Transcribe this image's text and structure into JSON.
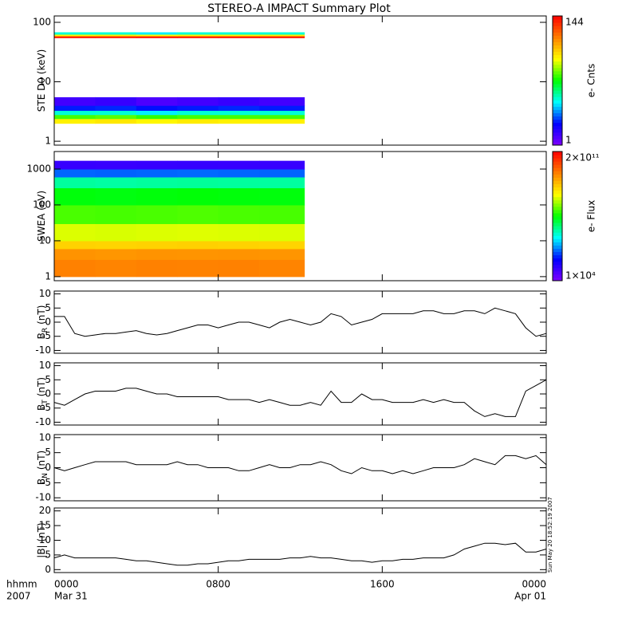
{
  "title": "STEREO-A IMPACT Summary Plot",
  "timestamp": "Sun May 20 18:52:19 2007",
  "xaxis": {
    "label": "hhmm",
    "year": "2007",
    "xlim": [
      0,
      24
    ],
    "xticks": [
      {
        "value": 0,
        "label": "0000"
      },
      {
        "value": 8,
        "label": "0800"
      },
      {
        "value": 16,
        "label": "1600"
      },
      {
        "value": 24,
        "label": "0000"
      }
    ],
    "dates": [
      {
        "value": 0,
        "label": "Mar 31"
      },
      {
        "value": 24,
        "label": "Apr 01"
      }
    ]
  },
  "colormap": [
    "#8000ff",
    "#0000ff",
    "#00ffff",
    "#00ff00",
    "#ffff00",
    "#ff8000",
    "#ff0000"
  ],
  "chart_data": [
    {
      "type": "heatmap",
      "ylabel": {
        "base": "STE D0 (keV)"
      },
      "ylog": true,
      "ylim": [
        0.86,
        128
      ],
      "yticks": [
        1,
        10,
        100
      ],
      "x": [
        0,
        2,
        4,
        6,
        8,
        10,
        12.2
      ],
      "y": [
        2,
        2.4,
        2.8,
        3.3,
        4,
        5.5,
        55,
        59,
        63,
        68
      ],
      "z": [
        [
          30,
          32,
          29,
          31,
          30,
          30
        ],
        [
          15,
          16,
          14,
          15,
          15,
          15
        ],
        [
          6,
          6,
          5,
          6,
          6,
          6
        ],
        [
          2.5,
          2.6,
          2.4,
          2.5,
          2.6,
          2.5
        ],
        [
          1.5,
          1.6,
          1.4,
          1.5,
          1.6,
          1.5
        ],
        [
          null,
          null,
          null,
          null,
          null,
          null
        ],
        [
          120,
          118,
          122,
          119,
          121,
          120
        ],
        [
          30,
          31,
          29,
          30,
          30,
          31
        ],
        [
          6,
          6,
          5,
          6,
          6,
          6
        ]
      ],
      "colorbar": {
        "label": "e- Cnts",
        "zlog": true,
        "zlim": [
          1,
          144
        ],
        "zticks": [
          1,
          144
        ]
      }
    },
    {
      "type": "heatmap",
      "ylabel": {
        "base": "SWEA (eV)"
      },
      "ylog": true,
      "ylim": [
        0.77,
        3085
      ],
      "yticks": [
        1,
        10,
        100,
        1000
      ],
      "x": [
        0,
        2,
        4,
        6,
        8,
        10,
        12.2
      ],
      "y": [
        1,
        3,
        6,
        10,
        30,
        100,
        300,
        600,
        1000,
        1700
      ],
      "z": [
        [
          12000000000,
          11000000000,
          12000000000,
          11500000000,
          12000000000,
          11000000000
        ],
        [
          8000000000,
          7500000000,
          8000000000,
          7800000000,
          8000000000,
          7600000000
        ],
        [
          2000000000,
          1900000000,
          2000000000,
          2100000000,
          2000000000,
          1900000000
        ],
        [
          500000000,
          480000000,
          500000000,
          520000000,
          500000000,
          490000000
        ],
        [
          100000000,
          95000000,
          100000000,
          105000000,
          100000000,
          98000000
        ],
        [
          40000000,
          38000000,
          40000000,
          42000000,
          40000000,
          39000000
        ],
        [
          8000000,
          7500000,
          8000000,
          8200000,
          8000000,
          7800000
        ],
        [
          500000,
          480000,
          500000,
          520000,
          500000,
          490000
        ],
        [
          50000,
          48000,
          50000,
          52000,
          50000,
          49000
        ]
      ],
      "colorbar": {
        "label": "e- Flux",
        "zlog": true,
        "zlim": [
          10000,
          200000000000
        ],
        "zticks": [
          {
            "value": 10000,
            "label": "1×10⁴"
          },
          {
            "value": 200000000000,
            "label": "2×10¹¹"
          }
        ]
      }
    },
    {
      "type": "line",
      "ylabel": {
        "base": "B",
        "sub": "R",
        "unit": "(nT)"
      },
      "ylim": [
        -11,
        11
      ],
      "yticks": [
        10,
        5,
        0,
        -5,
        -10
      ],
      "color": "#000000",
      "x": [
        0,
        0.5,
        1,
        1.5,
        2,
        2.5,
        3,
        3.5,
        4,
        4.5,
        5,
        5.5,
        6,
        6.5,
        7,
        7.5,
        8,
        8.5,
        9,
        9.5,
        10,
        10.5,
        11,
        11.5,
        12,
        12.5,
        13,
        13.5,
        14,
        14.5,
        15,
        15.5,
        16,
        16.5,
        17,
        17.5,
        18,
        18.5,
        19,
        19.5,
        20,
        20.5,
        21,
        21.5,
        22,
        22.5,
        23,
        23.5,
        24
      ],
      "values": [
        2,
        2,
        -4,
        -5,
        -4.5,
        -4,
        -4,
        -3.5,
        -3,
        -4,
        -4.5,
        -4,
        -3,
        -2,
        -1,
        -1,
        -2,
        -1,
        0,
        0,
        -1,
        -2,
        0,
        1,
        0,
        -1,
        0,
        3,
        2,
        -1,
        0,
        1,
        3,
        3,
        3,
        3,
        4,
        4,
        3,
        3,
        4,
        4,
        3,
        5,
        4,
        3,
        -2,
        -5,
        -4
      ]
    },
    {
      "type": "line",
      "ylabel": {
        "base": "B",
        "sub": "T",
        "unit": "(nT)"
      },
      "ylim": [
        -11,
        11
      ],
      "yticks": [
        10,
        5,
        0,
        -5,
        -10
      ],
      "color": "#000000",
      "x": [
        0,
        0.5,
        1,
        1.5,
        2,
        2.5,
        3,
        3.5,
        4,
        4.5,
        5,
        5.5,
        6,
        6.5,
        7,
        7.5,
        8,
        8.5,
        9,
        9.5,
        10,
        10.5,
        11,
        11.5,
        12,
        12.5,
        13,
        13.5,
        14,
        14.5,
        15,
        15.5,
        16,
        16.5,
        17,
        17.5,
        18,
        18.5,
        19,
        19.5,
        20,
        20.5,
        21,
        21.5,
        22,
        22.5,
        23,
        23.5,
        24
      ],
      "values": [
        -3,
        -4,
        -2,
        0,
        1,
        1,
        1,
        2,
        2,
        1,
        0,
        0,
        -1,
        -1,
        -1,
        -1,
        -1,
        -2,
        -2,
        -2,
        -3,
        -2,
        -3,
        -4,
        -4,
        -3,
        -4,
        1,
        -3,
        -3,
        0,
        -2,
        -2,
        -3,
        -3,
        -3,
        -2,
        -3,
        -2,
        -3,
        -3,
        -6,
        -8,
        -7,
        -8,
        -8,
        1,
        3,
        5
      ]
    },
    {
      "type": "line",
      "ylabel": {
        "base": "B",
        "sub": "N",
        "unit": "(nT)"
      },
      "ylim": [
        -11,
        11
      ],
      "yticks": [
        10,
        5,
        0,
        -5,
        -10
      ],
      "color": "#000000",
      "x": [
        0,
        0.5,
        1,
        1.5,
        2,
        2.5,
        3,
        3.5,
        4,
        4.5,
        5,
        5.5,
        6,
        6.5,
        7,
        7.5,
        8,
        8.5,
        9,
        9.5,
        10,
        10.5,
        11,
        11.5,
        12,
        12.5,
        13,
        13.5,
        14,
        14.5,
        15,
        15.5,
        16,
        16.5,
        17,
        17.5,
        18,
        18.5,
        19,
        19.5,
        20,
        20.5,
        21,
        21.5,
        22,
        22.5,
        23,
        23.5,
        24
      ],
      "values": [
        0,
        -1,
        0,
        1,
        2,
        2,
        2,
        2,
        1,
        1,
        1,
        1,
        2,
        1,
        1,
        0,
        0,
        0,
        -1,
        -1,
        0,
        1,
        0,
        0,
        1,
        1,
        2,
        1,
        -1,
        -2,
        0,
        -1,
        -1,
        -2,
        -1,
        -2,
        -1,
        0,
        0,
        0,
        1,
        3,
        2,
        1,
        4,
        4,
        3,
        4,
        1
      ]
    },
    {
      "type": "line",
      "ylabel": {
        "base": "|B| (nT)"
      },
      "ylim": [
        -1,
        21
      ],
      "yticks": [
        20,
        15,
        10,
        5,
        0
      ],
      "color": "#000000",
      "x": [
        0,
        0.5,
        1,
        1.5,
        2,
        2.5,
        3,
        3.5,
        4,
        4.5,
        5,
        5.5,
        6,
        6.5,
        7,
        7.5,
        8,
        8.5,
        9,
        9.5,
        10,
        10.5,
        11,
        11.5,
        12,
        12.5,
        13,
        13.5,
        14,
        14.5,
        15,
        15.5,
        16,
        16.5,
        17,
        17.5,
        18,
        18.5,
        19,
        19.5,
        20,
        20.5,
        21,
        21.5,
        22,
        22.5,
        23,
        23.5,
        24
      ],
      "values": [
        4,
        5,
        4,
        4,
        4,
        4,
        4,
        3.5,
        3,
        3,
        2.5,
        2,
        1.5,
        1.5,
        2,
        2,
        2.5,
        3,
        3,
        3.5,
        3.5,
        3.5,
        3.5,
        4,
        4,
        4.5,
        4,
        4,
        3.5,
        3,
        3,
        2.5,
        3,
        3,
        3.5,
        3.5,
        4,
        4,
        4,
        5,
        7,
        8,
        9,
        9,
        8.5,
        9,
        6,
        6,
        7
      ]
    }
  ]
}
